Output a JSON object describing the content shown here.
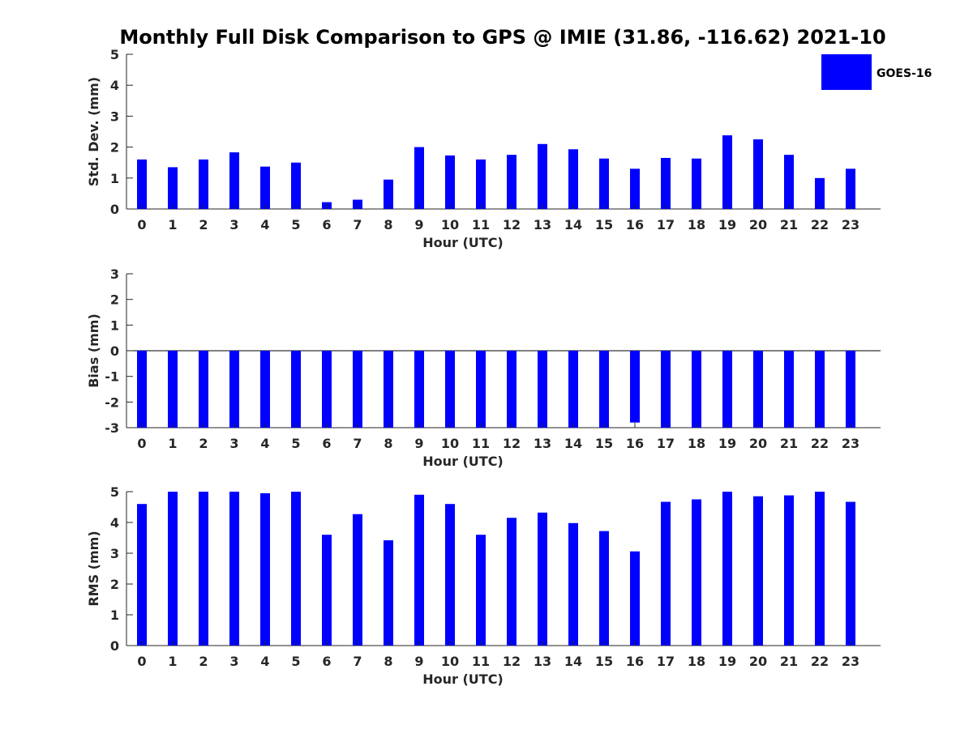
{
  "title": "Monthly Full Disk Comparison to GPS @ IMIE (31.86, -116.62) 2021-10",
  "legend": {
    "label": "GOES-16",
    "color": "#0000ff",
    "placement": "top-right"
  },
  "chart_data": [
    {
      "type": "bar",
      "name": "std-dev",
      "ylabel": "Std. Dev. (mm)",
      "xlabel": "Hour (UTC)",
      "ylim": [
        0,
        5
      ],
      "yticks": [
        0,
        1,
        2,
        3,
        4,
        5
      ],
      "categories": [
        "0",
        "1",
        "2",
        "3",
        "4",
        "5",
        "6",
        "7",
        "8",
        "9",
        "10",
        "11",
        "12",
        "13",
        "14",
        "15",
        "16",
        "17",
        "18",
        "19",
        "20",
        "21",
        "22",
        "23"
      ],
      "series": [
        {
          "name": "GOES-16",
          "color": "#0000ff",
          "values": [
            1.6,
            1.35,
            1.6,
            1.83,
            1.37,
            1.5,
            0.22,
            0.3,
            0.95,
            2.0,
            1.73,
            1.6,
            1.75,
            2.1,
            1.93,
            1.63,
            1.3,
            1.65,
            1.63,
            2.38,
            2.25,
            1.75,
            1.0,
            1.3
          ]
        }
      ]
    },
    {
      "type": "bar",
      "name": "bias",
      "ylabel": "Bias (mm)",
      "xlabel": "Hour (UTC)",
      "ylim": [
        -3,
        3
      ],
      "yticks": [
        -3,
        -2,
        -1,
        0,
        1,
        2,
        3
      ],
      "categories": [
        "0",
        "1",
        "2",
        "3",
        "4",
        "5",
        "6",
        "7",
        "8",
        "9",
        "10",
        "11",
        "12",
        "13",
        "14",
        "15",
        "16",
        "17",
        "18",
        "19",
        "20",
        "21",
        "22",
        "23"
      ],
      "series": [
        {
          "name": "GOES-16",
          "color": "#0000ff",
          "values": [
            -3,
            -3,
            -3,
            -3,
            -3,
            -3,
            -3,
            -3,
            -3,
            -3,
            -3,
            -3,
            -3,
            -3,
            -3,
            -3,
            -2.8,
            -3,
            -3,
            -3,
            -3,
            -3,
            -3,
            -3
          ]
        }
      ]
    },
    {
      "type": "bar",
      "name": "rms",
      "ylabel": "RMS (mm)",
      "xlabel": "Hour (UTC)",
      "ylim": [
        0,
        5
      ],
      "yticks": [
        0,
        1,
        2,
        3,
        4,
        5
      ],
      "categories": [
        "0",
        "1",
        "2",
        "3",
        "4",
        "5",
        "6",
        "7",
        "8",
        "9",
        "10",
        "11",
        "12",
        "13",
        "14",
        "15",
        "16",
        "17",
        "18",
        "19",
        "20",
        "21",
        "22",
        "23"
      ],
      "series": [
        {
          "name": "GOES-16",
          "color": "#0000ff",
          "values": [
            4.6,
            5.0,
            5.0,
            5.0,
            4.95,
            5.0,
            3.6,
            4.27,
            3.42,
            4.9,
            4.6,
            3.6,
            4.15,
            4.32,
            3.98,
            3.72,
            3.06,
            4.67,
            4.75,
            5.0,
            4.85,
            4.88,
            5.0,
            4.67
          ]
        }
      ]
    }
  ]
}
